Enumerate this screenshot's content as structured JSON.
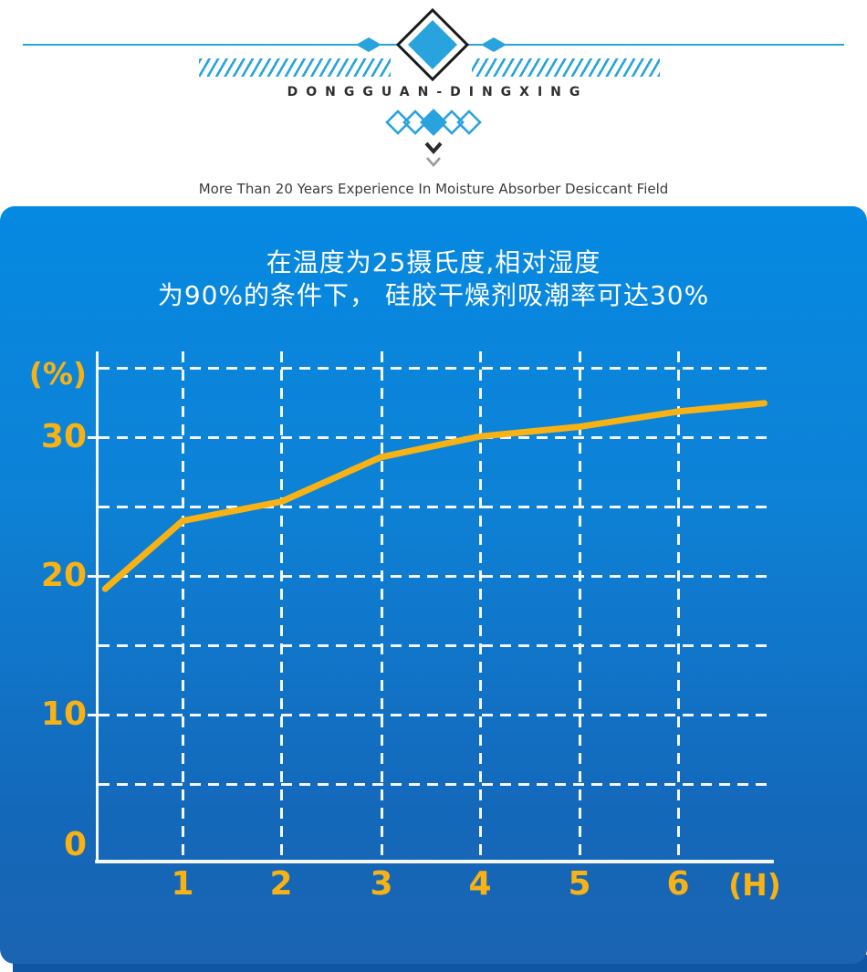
{
  "header": {
    "brand": "DONGGUAN-DINGXING",
    "tagline": "More Than 20 Years Experience In Moisture Absorber Desiccant Field",
    "ornaments": [
      "rule-with-diamonds",
      "hatch-stripes",
      "diamond-chain",
      "double-chevron-down"
    ]
  },
  "panel": {
    "title_line1": "在温度为25摄氏度,相对湿度",
    "title_line2": "为90%的条件下， 硅胶干燥剂吸潮率可达30%"
  },
  "chart_data": {
    "type": "line",
    "title": "在温度为25摄氏度,相对湿度为90%的条件下，硅胶干燥剂吸潮率可达30%",
    "xlabel": "(H)",
    "ylabel": "(%)",
    "xlim": [
      0,
      7
    ],
    "ylim": [
      0,
      35
    ],
    "grid": "dashed white, vertical every 1 H, horizontal every 5 %",
    "legend": "none",
    "x_tick_labels": [
      "1",
      "2",
      "3",
      "4",
      "5",
      "6"
    ],
    "y_tick_labels": [
      "30",
      "20",
      "10",
      "0"
    ],
    "series": [
      {
        "name": "硅胶干燥剂吸潮率",
        "color": "#f9b214",
        "points": [
          [
            0.22,
            19.1
          ],
          [
            1,
            24.0
          ],
          [
            2,
            25.4
          ],
          [
            3,
            28.6
          ],
          [
            4,
            30.1
          ],
          [
            5,
            30.8
          ],
          [
            6,
            31.9
          ],
          [
            6.87,
            32.5
          ]
        ]
      }
    ]
  },
  "colors": {
    "accent_blue": "#29a3dd",
    "panel_top": "#0689e1",
    "panel_bottom": "#1a64b2",
    "panel_back_strip": "#0f57a5",
    "line_yellow": "#f9b214",
    "grid_white": "#f4f7fb",
    "diamond_outline": "#1a1a1a"
  }
}
